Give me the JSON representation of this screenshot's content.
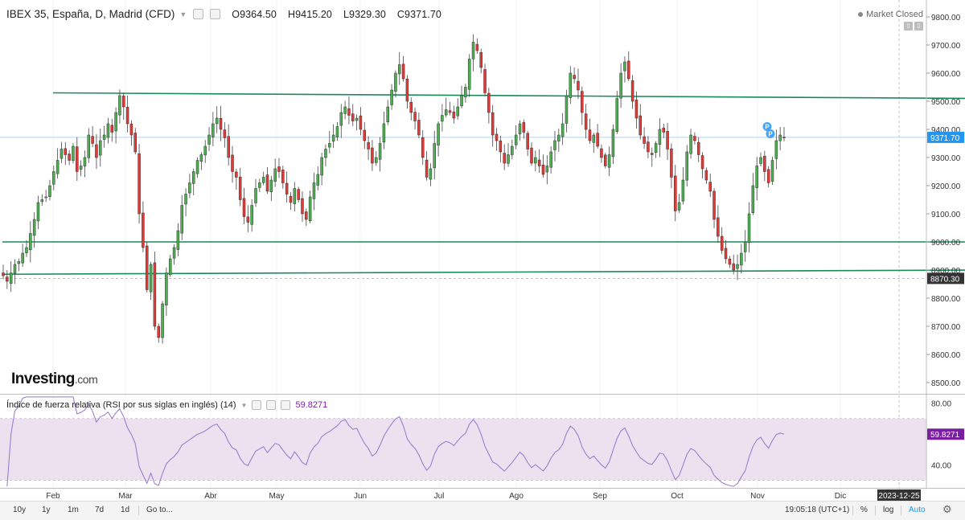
{
  "legend": {
    "title": "IBEX 35, España, D, Madrid (CFD)",
    "open": "O9364.50",
    "high": "H9415.20",
    "low": "L9329.30",
    "close": "C9371.70"
  },
  "market_status": "Market Closed",
  "logo": {
    "main": "Investing",
    "suffix": ".com"
  },
  "rsi_legend": {
    "name": "Índice de fuerza relativa (RSI por sus siglas en inglés) (14)",
    "value": "59.8271"
  },
  "toolbar": {
    "range_10y": "10y",
    "range_1y": "1y",
    "range_1m": "1m",
    "range_7d": "7d",
    "range_1d": "1d",
    "goto": "Go to...",
    "clock": "19:05:18 (UTC+1)",
    "percent": "%",
    "log": "log",
    "auto": "Auto"
  },
  "colors": {
    "up": "#4caf50",
    "down": "#e53935",
    "level_line": "#1b8a5a",
    "rsi_line": "#9575cd",
    "rsi_band": "#ede0ef",
    "price_badge": "#2196f3",
    "marker": "#42a5f5"
  },
  "chart_data": [
    {
      "type": "candlestick",
      "instrument": "IBEX 35, España, D, Madrid (CFD)",
      "y_axis_labels": [
        "9800.00",
        "9700.00",
        "9600.00",
        "9500.00",
        "9400.00",
        "9300.00",
        "9200.00",
        "9100.00",
        "9000.00",
        "8900.00",
        "8800.00",
        "8700.00",
        "8600.00",
        "8500.00"
      ],
      "x_axis_labels": [
        "Feb",
        "Mar",
        "Abr",
        "May",
        "Jun",
        "Jul",
        "Ago",
        "Sep",
        "Oct",
        "Nov",
        "Dic"
      ],
      "cursor_date": "2023-12-25",
      "ylim": [
        8460,
        9860
      ],
      "last_price_label": "9371.70",
      "crosshair_price_label": "8870.30",
      "markers": [
        "P",
        "P"
      ],
      "trendlines": [
        {
          "from": [
            0.0,
            9530
          ],
          "to": [
            11.65,
            9510
          ]
        },
        {
          "from": [
            -0.7,
            9000
          ],
          "to": [
            11.65,
            9000
          ]
        },
        {
          "from": [
            -0.7,
            8885
          ],
          "to": [
            11.65,
            8900
          ]
        }
      ],
      "closes": [
        8880,
        8860,
        8890,
        8920,
        8930,
        8960,
        8980,
        9030,
        9080,
        9140,
        9150,
        9160,
        9200,
        9250,
        9290,
        9330,
        9310,
        9290,
        9340,
        9250,
        9270,
        9300,
        9380,
        9350,
        9300,
        9360,
        9380,
        9420,
        9390,
        9460,
        9520,
        9480,
        9420,
        9380,
        9320,
        9100,
        8980,
        8830,
        8920,
        8700,
        8660,
        8780,
        8890,
        8940,
        8980,
        9040,
        9130,
        9170,
        9210,
        9250,
        9290,
        9310,
        9340,
        9380,
        9420,
        9440,
        9400,
        9370,
        9300,
        9250,
        9230,
        9150,
        9090,
        9070,
        9130,
        9190,
        9210,
        9230,
        9180,
        9220,
        9260,
        9250,
        9210,
        9170,
        9140,
        9190,
        9150,
        9100,
        9080,
        9160,
        9210,
        9240,
        9300,
        9330,
        9350,
        9380,
        9410,
        9460,
        9480,
        9450,
        9430,
        9440,
        9400,
        9360,
        9330,
        9280,
        9300,
        9350,
        9420,
        9480,
        9540,
        9600,
        9630,
        9580,
        9500,
        9460,
        9430,
        9380,
        9300,
        9230,
        9260,
        9350,
        9420,
        9450,
        9470,
        9460,
        9440,
        9480,
        9520,
        9550,
        9650,
        9710,
        9680,
        9620,
        9530,
        9460,
        9380,
        9360,
        9320,
        9280,
        9310,
        9340,
        9380,
        9420,
        9390,
        9330,
        9280,
        9300,
        9270,
        9240,
        9270,
        9320,
        9360,
        9380,
        9420,
        9520,
        9600,
        9580,
        9540,
        9460,
        9400,
        9360,
        9380,
        9340,
        9300,
        9270,
        9310,
        9400,
        9510,
        9600,
        9640,
        9580,
        9500,
        9440,
        9380,
        9350,
        9320,
        9310,
        9350,
        9400,
        9390,
        9330,
        9230,
        9110,
        9140,
        9220,
        9320,
        9380,
        9360,
        9310,
        9260,
        9220,
        9180,
        9080,
        9020,
        8970,
        8940,
        8920,
        8900,
        8920,
        8960,
        9000,
        9100,
        9200,
        9270,
        9300,
        9250,
        9210,
        9290,
        9360,
        9380,
        9371.7
      ],
      "rsi": {
        "name": "Índice de fuerza relativa (RSI por sus siglas en inglés) (14)",
        "axis_labels": [
          "80.00",
          "40.00"
        ],
        "ylim": [
          25,
          85
        ],
        "band": [
          30,
          70
        ],
        "last_value": 59.8271
      }
    }
  ]
}
